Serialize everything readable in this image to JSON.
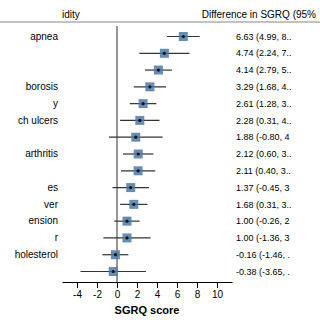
{
  "chart_data": {
    "type": "forest",
    "orientation": "horizontal",
    "ylabel": "idity",
    "annotation_title": "Difference in SGRQ (95%",
    "xlabel": "SGRQ score",
    "categories": [
      "apnea",
      null,
      null,
      "borosis",
      "y",
      "ch ulcers",
      null,
      "arthritis",
      null,
      "es",
      "ver",
      "ension",
      "r",
      "holesterol",
      null
    ],
    "values": [
      6.63,
      4.74,
      4.14,
      3.29,
      2.61,
      2.28,
      1.88,
      2.12,
      2.11,
      1.37,
      1.68,
      1.0,
      1.0,
      -0.16,
      -0.38
    ],
    "ci_low": [
      4.99,
      2.24,
      2.79,
      1.68,
      1.28,
      0.31,
      -0.8,
      0.6,
      0.4,
      -0.45,
      0.31,
      -0.26,
      -1.36,
      -1.46,
      -3.65
    ],
    "ci_high": [
      8.27,
      7.24,
      5.49,
      4.9,
      3.94,
      4.25,
      4.56,
      3.64,
      3.82,
      3.19,
      3.05,
      2.26,
      3.36,
      1.14,
      2.89
    ],
    "annotations": [
      "6.63 (4.99, 8..",
      "4.74 (2.24, 7..",
      "4.14 (2.79, 5..",
      "3.29 (1.68, 4..",
      "2.61 (1.28, 3..",
      "2.28 (0.31, 4..",
      "1.88 (-0.80, 4",
      "2.12 (0.60, 3..",
      "2.11 (0.40, 3..",
      "1.37 (-0.45, 3",
      "1.68 (0.31, 3..",
      "1.00 (-0.26, 2",
      "1.00 (-1.36, 3",
      "-0.16 (-1.46, .",
      "-0.38 (-3.65, ."
    ],
    "vline_x": 0,
    "xlim": [
      -5.5,
      11.5
    ],
    "xticks": [
      -4,
      -2,
      0,
      2,
      4,
      6,
      8,
      10
    ]
  }
}
